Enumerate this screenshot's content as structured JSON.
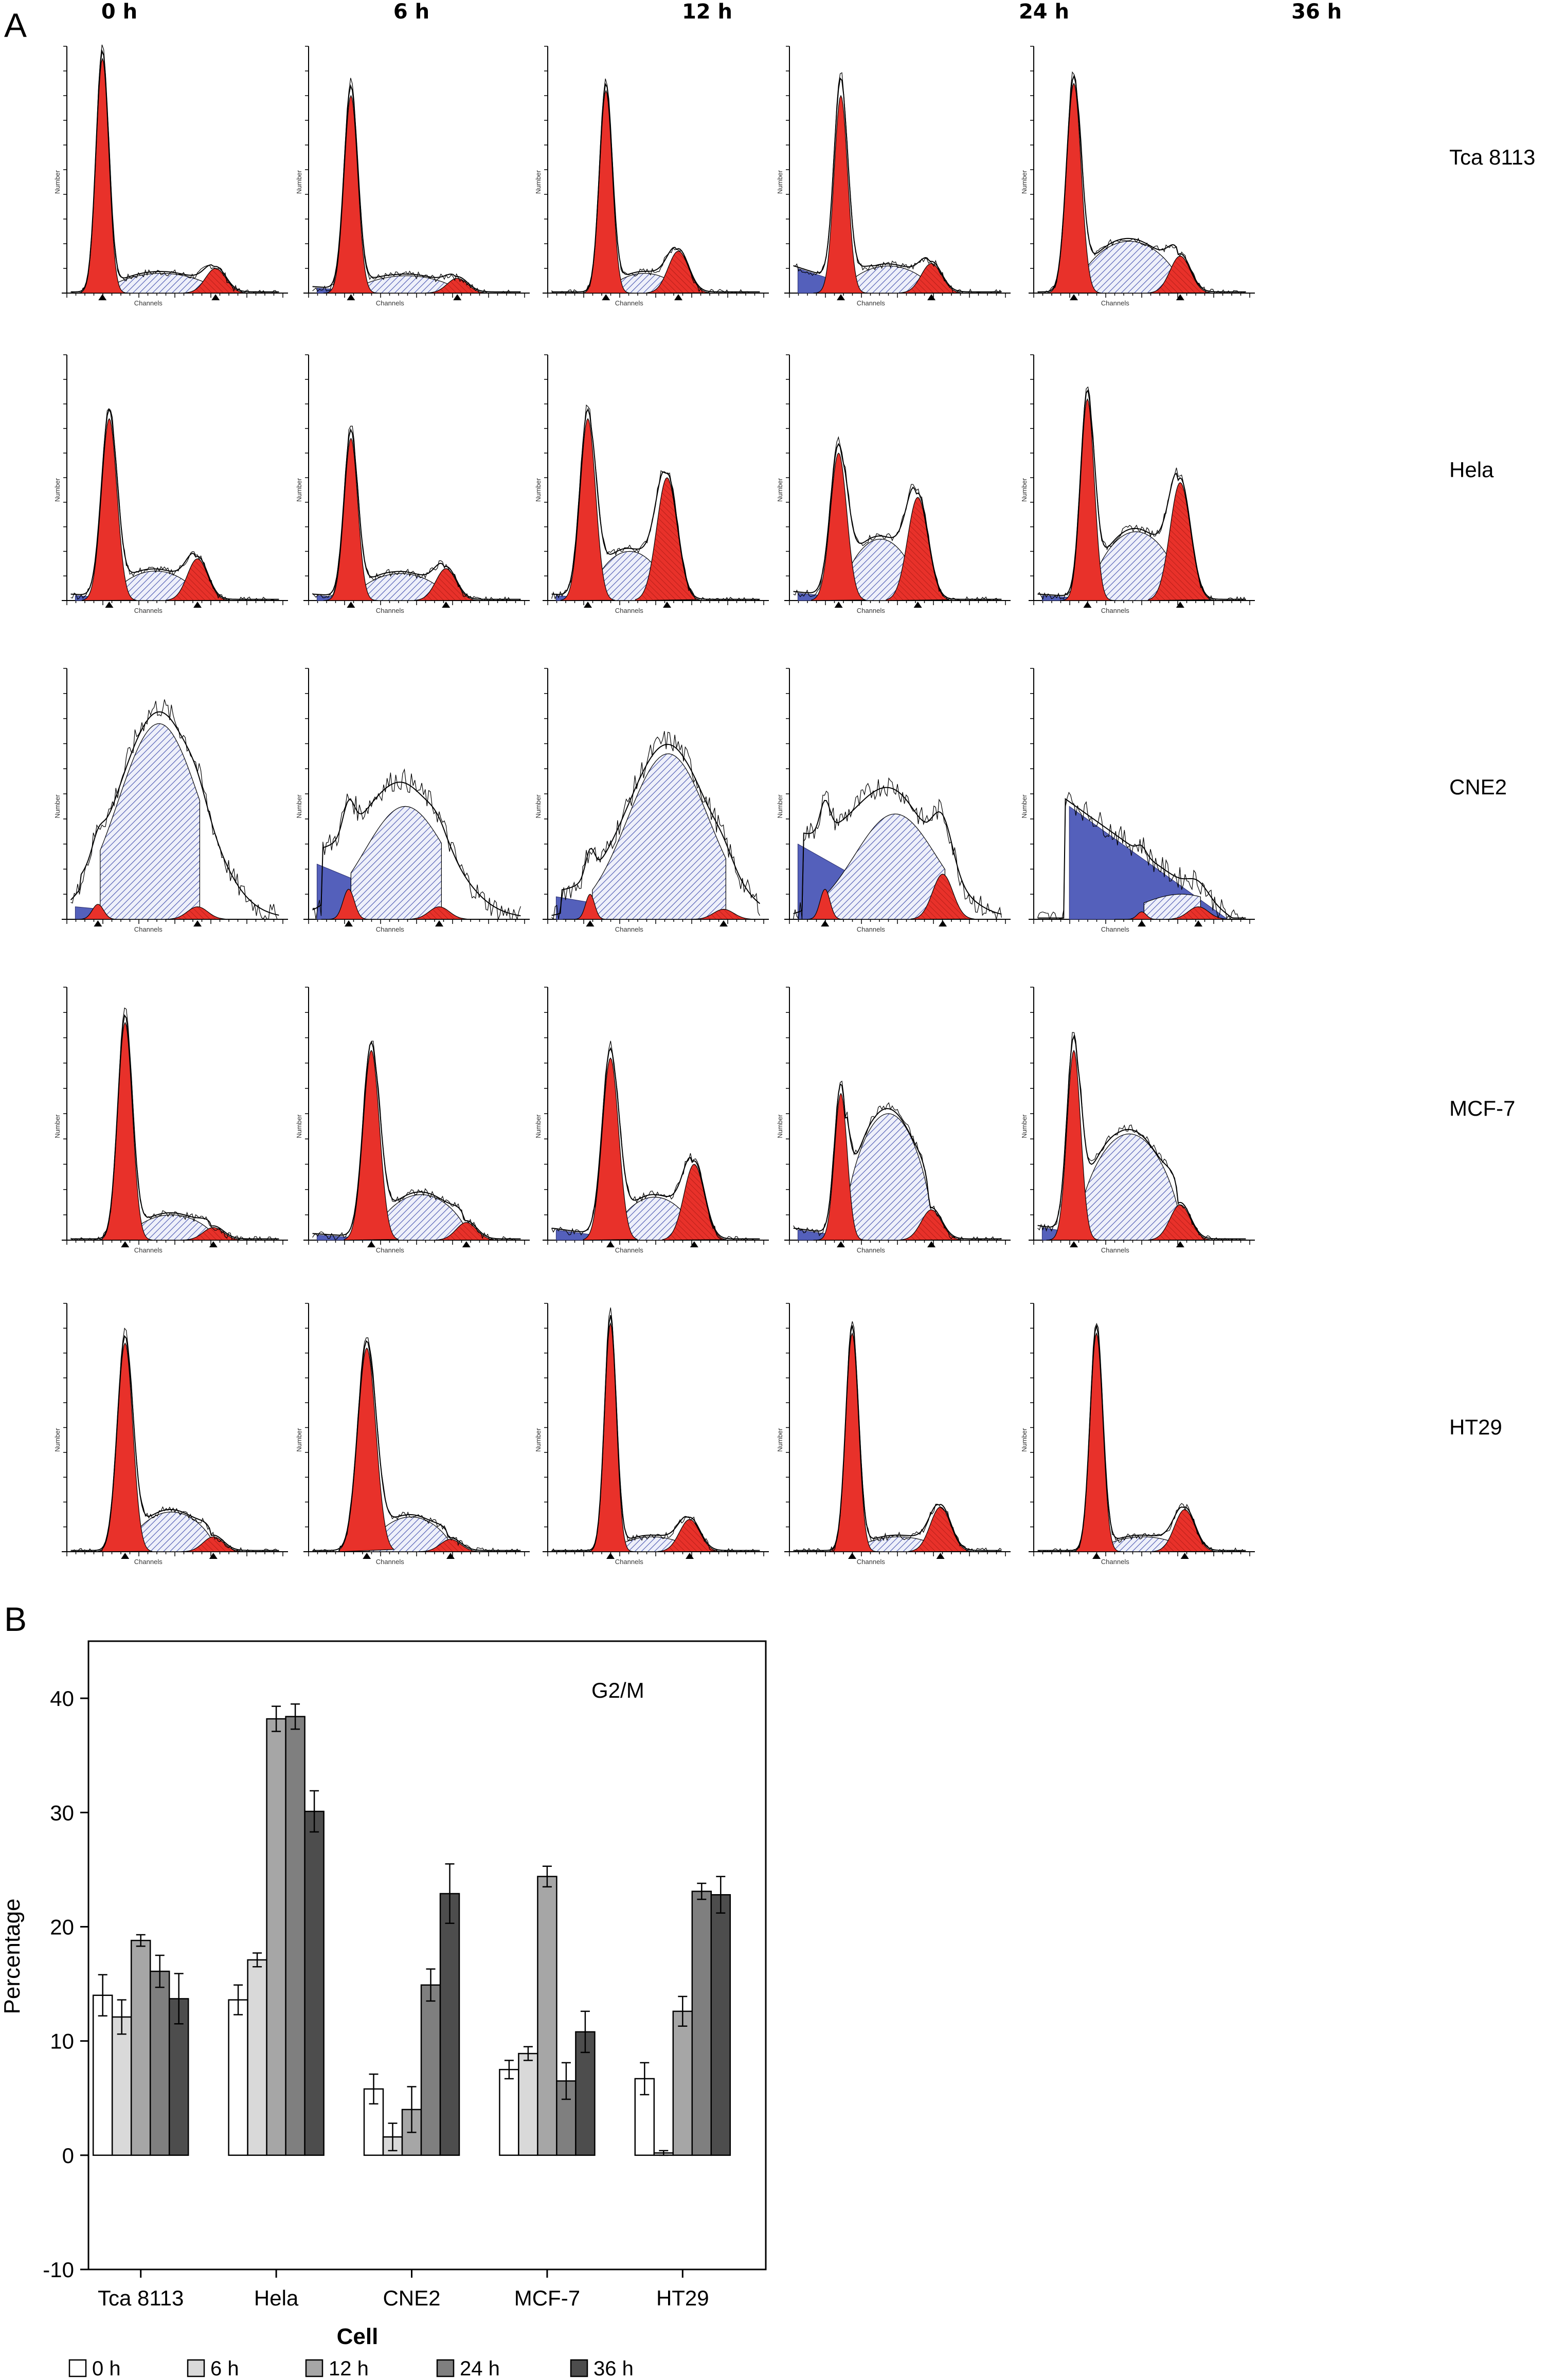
{
  "panel_a": {
    "letter": "A",
    "time_points": [
      "0 h",
      "6 h",
      "12 h",
      "24 h",
      "36 h"
    ],
    "cell_lines": [
      "Tca 8113",
      "Hela",
      "CNE2",
      "MCF-7",
      "HT29"
    ],
    "axis_x_label": "Channels",
    "axis_y_label": "Number",
    "colors": {
      "g1_fill": "#e8312a",
      "hatch": "#4a56b0",
      "debris": "#5460bb",
      "trace": "#000000"
    }
  },
  "chart_data": {
    "type": "bar",
    "panel_letter": "B",
    "annotation": "G2/M",
    "categories": [
      "Tca 8113",
      "Hela",
      "CNE2",
      "MCF-7",
      "HT29"
    ],
    "xlabel": "Cell",
    "ylabel": "Percentage",
    "ylim": [
      -10,
      45
    ],
    "yticks": [
      -10,
      0,
      10,
      20,
      30,
      40
    ],
    "grid": false,
    "legend_position": "bottom",
    "series": [
      {
        "name": "0 h",
        "color": "#ffffff",
        "values": [
          14.0,
          13.6,
          5.8,
          7.5,
          6.7
        ],
        "errors": [
          1.8,
          1.3,
          1.3,
          0.8,
          1.4
        ]
      },
      {
        "name": "6 h",
        "color": "#d9d9d9",
        "values": [
          12.1,
          17.1,
          1.6,
          8.9,
          0.2
        ],
        "errors": [
          1.5,
          0.6,
          1.2,
          0.6,
          0.2
        ]
      },
      {
        "name": "12 h",
        "color": "#a6a6a6",
        "values": [
          18.8,
          38.2,
          4.0,
          24.4,
          12.6
        ],
        "errors": [
          0.5,
          1.1,
          2.0,
          0.9,
          1.3
        ]
      },
      {
        "name": "24 h",
        "color": "#7f7f7f",
        "values": [
          16.1,
          38.4,
          14.9,
          6.5,
          23.1
        ],
        "errors": [
          1.4,
          1.1,
          1.4,
          1.6,
          0.7
        ]
      },
      {
        "name": "36 h",
        "color": "#4d4d4d",
        "values": [
          13.7,
          30.1,
          22.9,
          10.8,
          22.8
        ],
        "errors": [
          2.2,
          1.8,
          2.6,
          1.8,
          1.6
        ]
      }
    ]
  }
}
